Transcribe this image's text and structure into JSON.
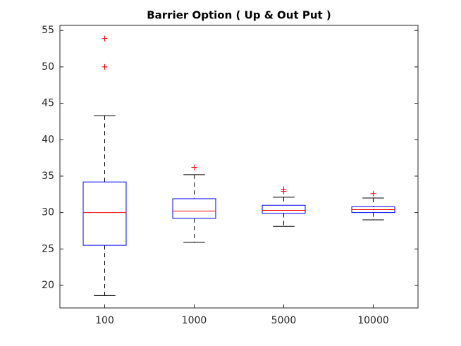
{
  "chart_data": {
    "type": "box",
    "title": "Barrier Option ( Up & Out Put )",
    "categories": [
      "100",
      "1000",
      "5000",
      "10000"
    ],
    "boxes": [
      {
        "min": 18.6,
        "q1": 25.5,
        "median": 30.0,
        "q3": 34.2,
        "max": 43.3,
        "outliers": [
          50.0,
          53.9
        ]
      },
      {
        "min": 25.9,
        "q1": 29.2,
        "median": 30.2,
        "q3": 31.9,
        "max": 35.2,
        "outliers": [
          36.2
        ]
      },
      {
        "min": 28.1,
        "q1": 29.9,
        "median": 30.3,
        "q3": 31.0,
        "max": 32.1,
        "outliers": [
          32.9,
          33.2
        ]
      },
      {
        "min": 29.0,
        "q1": 30.0,
        "median": 30.4,
        "q3": 30.8,
        "max": 32.0,
        "outliers": [
          32.6
        ]
      }
    ],
    "box_color": "#0000ff",
    "median_color": "#ff0000",
    "whisker_color": "#000000",
    "outlier_color": "#ff0000",
    "ylim": [
      16.9,
      55.7
    ],
    "yticks": [
      20,
      25,
      30,
      35,
      40,
      45,
      50,
      55
    ]
  }
}
